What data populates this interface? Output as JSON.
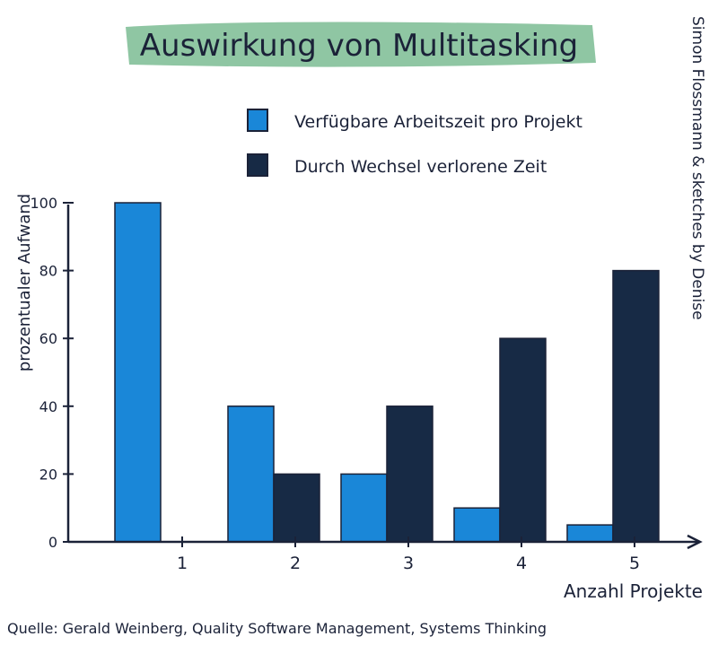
{
  "chart_data": {
    "type": "bar",
    "title": "Auswirkung von Multitasking",
    "xlabel": "Anzahl Projekte",
    "ylabel": "prozentualer Aufwand",
    "categories": [
      "1",
      "2",
      "3",
      "4",
      "5"
    ],
    "series": [
      {
        "name": "Verfügbare Arbeitszeit pro Projekt",
        "values": [
          100,
          40,
          20,
          10,
          5
        ],
        "color": "#1a87d8"
      },
      {
        "name": "Durch Wechsel verlorene Zeit",
        "values": [
          0,
          20,
          40,
          60,
          80
        ],
        "color": "#172a45"
      }
    ],
    "yticks": [
      "0",
      "20",
      "40",
      "60",
      "80",
      "100"
    ],
    "ylim": [
      0,
      100
    ],
    "legend": "top",
    "grid": false
  },
  "colors": {
    "title_highlight": "#8fc6a3",
    "axis": "#1b2238"
  },
  "credit": "Simon Flossmann & sketches by Denise",
  "source": "Quelle: Gerald Weinberg, Quality Software Management, Systems Thinking"
}
